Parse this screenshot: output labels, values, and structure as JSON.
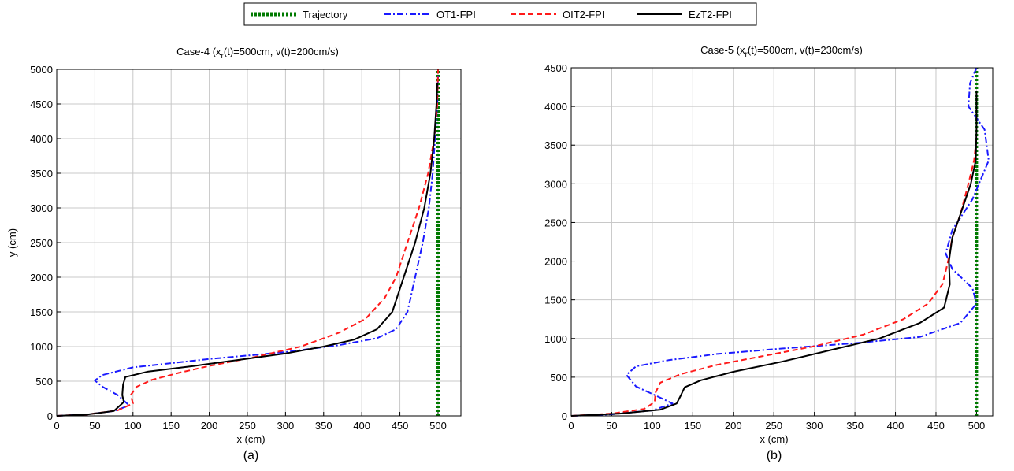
{
  "legend": {
    "entries": [
      {
        "label": "Trajectory",
        "color": "#007a00",
        "dash": "dotted"
      },
      {
        "label": "OT1-FPI",
        "color": "#1a1aff",
        "dash": "dashdot"
      },
      {
        "label": "OIT2-FPI",
        "color": "#ff1a1a",
        "dash": "dashed"
      },
      {
        "label": "EzT2-FPI",
        "color": "#000000",
        "dash": "solid"
      }
    ]
  },
  "chart_data": [
    {
      "type": "line",
      "panel_label": "(a)",
      "title_parts": {
        "prefix": "Case-4 (x",
        "sub": "r",
        "suffix": "(t)=500cm, v(t)=200cm/s)"
      },
      "xlabel": "x (cm)",
      "ylabel": "y (cm)",
      "xlim": [
        0,
        530
      ],
      "ylim": [
        0,
        5000
      ],
      "xticks": [
        0,
        50,
        100,
        150,
        200,
        250,
        300,
        350,
        400,
        450,
        500
      ],
      "yticks": [
        0,
        500,
        1000,
        1500,
        2000,
        2500,
        3000,
        3500,
        4000,
        4500,
        5000
      ],
      "grid": true,
      "series": [
        {
          "name": "Trajectory",
          "points": [
            [
              500,
              0
            ],
            [
              500,
              5000
            ]
          ]
        },
        {
          "name": "OT1-FPI",
          "points": [
            [
              0,
              0
            ],
            [
              40,
              20
            ],
            [
              75,
              70
            ],
            [
              95,
              150
            ],
            [
              80,
              300
            ],
            [
              60,
              420
            ],
            [
              50,
              510
            ],
            [
              60,
              590
            ],
            [
              100,
              700
            ],
            [
              200,
              820
            ],
            [
              300,
              920
            ],
            [
              370,
              1020
            ],
            [
              420,
              1120
            ],
            [
              445,
              1250
            ],
            [
              460,
              1500
            ],
            [
              470,
              2000
            ],
            [
              480,
              2500
            ],
            [
              488,
              3000
            ],
            [
              493,
              3500
            ],
            [
              496,
              4000
            ],
            [
              499,
              4500
            ],
            [
              500,
              4900
            ]
          ]
        },
        {
          "name": "OIT2-FPI",
          "points": [
            [
              0,
              0
            ],
            [
              40,
              20
            ],
            [
              80,
              80
            ],
            [
              100,
              180
            ],
            [
              97,
              300
            ],
            [
              105,
              420
            ],
            [
              125,
              520
            ],
            [
              160,
              620
            ],
            [
              200,
              720
            ],
            [
              260,
              850
            ],
            [
              320,
              1000
            ],
            [
              370,
              1200
            ],
            [
              405,
              1400
            ],
            [
              430,
              1700
            ],
            [
              445,
              2000
            ],
            [
              460,
              2500
            ],
            [
              475,
              3000
            ],
            [
              487,
              3500
            ],
            [
              495,
              4000
            ],
            [
              499,
              4500
            ],
            [
              500,
              5000
            ]
          ]
        },
        {
          "name": "EzT2-FPI",
          "points": [
            [
              0,
              0
            ],
            [
              40,
              20
            ],
            [
              75,
              70
            ],
            [
              88,
              200
            ],
            [
              86,
              300
            ],
            [
              87,
              450
            ],
            [
              90,
              560
            ],
            [
              120,
              640
            ],
            [
              180,
              720
            ],
            [
              240,
              810
            ],
            [
              300,
              900
            ],
            [
              350,
              1000
            ],
            [
              390,
              1100
            ],
            [
              420,
              1250
            ],
            [
              440,
              1500
            ],
            [
              455,
              2000
            ],
            [
              470,
              2500
            ],
            [
              482,
              3000
            ],
            [
              490,
              3500
            ],
            [
              495,
              4000
            ],
            [
              498,
              4500
            ],
            [
              499,
              4800
            ]
          ]
        }
      ]
    },
    {
      "type": "line",
      "panel_label": "(b)",
      "title_parts": {
        "prefix": "Case-5 (x",
        "sub": "r",
        "suffix": "(t)=500cm, v(t)=230cm/s)"
      },
      "xlabel": "x (cm)",
      "ylabel": "",
      "xlim": [
        0,
        520
      ],
      "ylim": [
        0,
        4500
      ],
      "xticks": [
        0,
        50,
        100,
        150,
        200,
        250,
        300,
        350,
        400,
        450,
        500
      ],
      "yticks": [
        0,
        500,
        1000,
        1500,
        2000,
        2500,
        3000,
        3500,
        4000,
        4500
      ],
      "grid": true,
      "series": [
        {
          "name": "Trajectory",
          "points": [
            [
              500,
              0
            ],
            [
              500,
              4500
            ]
          ]
        },
        {
          "name": "OT1-FPI",
          "points": [
            [
              0,
              0
            ],
            [
              50,
              20
            ],
            [
              100,
              70
            ],
            [
              125,
              160
            ],
            [
              105,
              260
            ],
            [
              80,
              380
            ],
            [
              68,
              530
            ],
            [
              80,
              640
            ],
            [
              120,
              720
            ],
            [
              180,
              800
            ],
            [
              260,
              870
            ],
            [
              350,
              940
            ],
            [
              430,
              1020
            ],
            [
              480,
              1200
            ],
            [
              500,
              1450
            ],
            [
              495,
              1650
            ],
            [
              470,
              1900
            ],
            [
              462,
              2100
            ],
            [
              470,
              2400
            ],
            [
              495,
              2800
            ],
            [
              515,
              3300
            ],
            [
              510,
              3700
            ],
            [
              490,
              4000
            ],
            [
              492,
              4300
            ],
            [
              500,
              4500
            ]
          ]
        },
        {
          "name": "OIT2-FPI",
          "points": [
            [
              0,
              0
            ],
            [
              50,
              30
            ],
            [
              90,
              90
            ],
            [
              103,
              180
            ],
            [
              104,
              300
            ],
            [
              110,
              430
            ],
            [
              135,
              540
            ],
            [
              180,
              660
            ],
            [
              240,
              780
            ],
            [
              300,
              900
            ],
            [
              360,
              1050
            ],
            [
              410,
              1250
            ],
            [
              440,
              1450
            ],
            [
              458,
              1700
            ],
            [
              465,
              2000
            ],
            [
              470,
              2300
            ],
            [
              480,
              2600
            ],
            [
              490,
              3000
            ],
            [
              497,
              3300
            ],
            [
              500,
              3600
            ]
          ]
        },
        {
          "name": "EzT2-FPI",
          "points": [
            [
              0,
              0
            ],
            [
              60,
              30
            ],
            [
              110,
              80
            ],
            [
              130,
              160
            ],
            [
              135,
              260
            ],
            [
              140,
              370
            ],
            [
              160,
              460
            ],
            [
              200,
              570
            ],
            [
              260,
              700
            ],
            [
              320,
              850
            ],
            [
              380,
              1000
            ],
            [
              430,
              1200
            ],
            [
              460,
              1400
            ],
            [
              467,
              1700
            ],
            [
              466,
              2000
            ],
            [
              470,
              2300
            ],
            [
              480,
              2600
            ],
            [
              493,
              3000
            ],
            [
              499,
              3300
            ],
            [
              500,
              3700
            ],
            [
              500,
              4200
            ]
          ]
        }
      ]
    }
  ]
}
